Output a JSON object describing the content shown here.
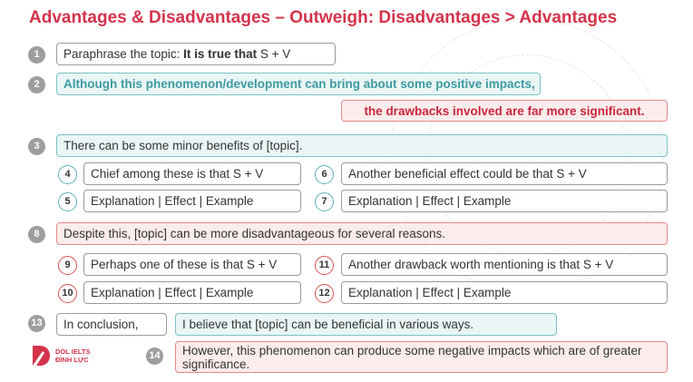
{
  "title": "Advantages & Disadvantages – Outweigh: Disadvantages > Advantages",
  "steps": {
    "s1": {
      "num": "1",
      "prefix": "Paraphrase the topic: ",
      "bold": "It is true that",
      "suffix": " S + V"
    },
    "s2": {
      "num": "2",
      "text": "Although this phenomenon/development can bring about some positive impacts,"
    },
    "s2b": {
      "text": "the drawbacks involved are far more significant."
    },
    "s3": {
      "num": "3",
      "text": "There can be some minor benefits of [topic]."
    },
    "s4": {
      "num": "4",
      "text": "Chief among these is that S + V"
    },
    "s5": {
      "num": "5",
      "text": "Explanation | Effect | Example"
    },
    "s6": {
      "num": "6",
      "text": "Another beneficial effect could be that S + V"
    },
    "s7": {
      "num": "7",
      "text": "Explanation | Effect | Example"
    },
    "s8": {
      "num": "8",
      "text": "Despite this, [topic] can be more disadvantageous for several reasons."
    },
    "s9": {
      "num": "9",
      "text": "Perhaps one of these is that S + V"
    },
    "s10": {
      "num": "10",
      "text": "Explanation | Effect | Example"
    },
    "s11": {
      "num": "11",
      "text": "Another drawback worth mentioning is that S + V"
    },
    "s12": {
      "num": "12",
      "text": "Explanation | Effect | Example"
    },
    "s13": {
      "num": "13",
      "text": "In conclusion,",
      "text2": "I believe that [topic] can be beneficial in various ways."
    },
    "s14": {
      "num": "14",
      "text": "However, this phenomenon can produce some negative impacts which are of greater significance."
    }
  },
  "logo": {
    "line1": "DOL IELTS",
    "line2": "ĐÌNH LỰC",
    "color": "#d4334b"
  },
  "colors": {
    "title": "#d4334b",
    "teal": "#5fb0b4",
    "red": "#d9534f",
    "grey": "#9e9e9e"
  }
}
